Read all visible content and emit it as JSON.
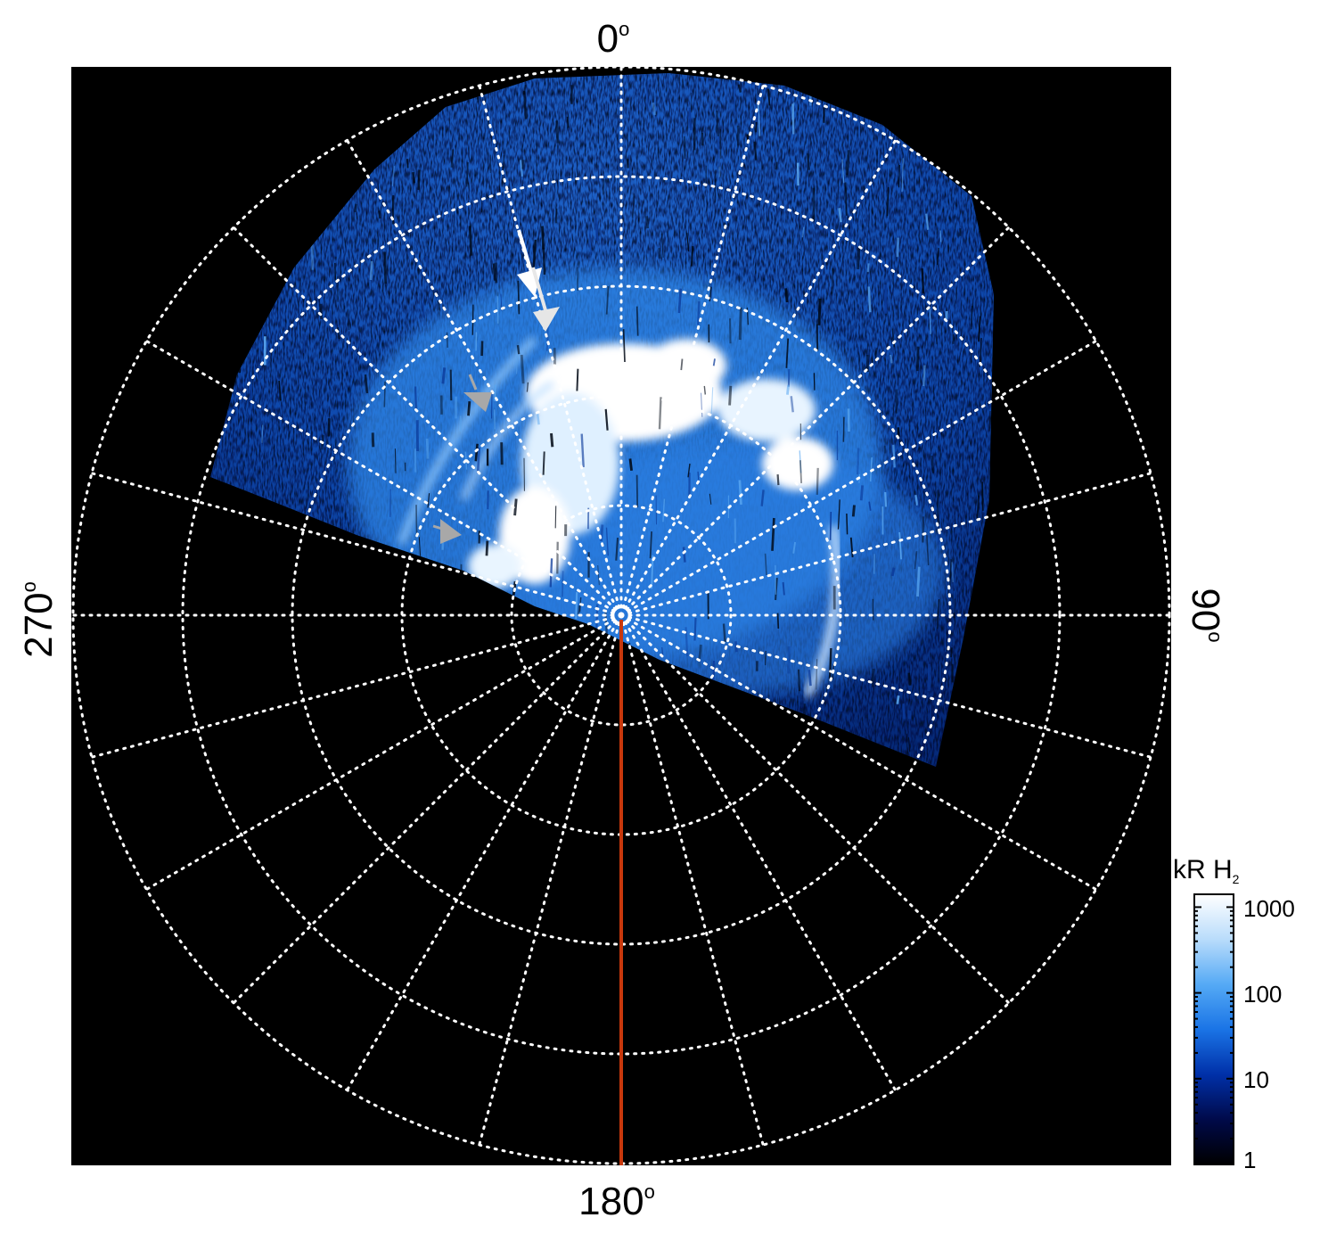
{
  "figure": {
    "labels": {
      "top": "0",
      "bottom": "180",
      "left": "270",
      "right": "90",
      "degree_symbol": "o"
    },
    "colorbar": {
      "title_main": "kR H",
      "title_sub": "2",
      "ticks": [
        "1000",
        "100",
        "10",
        "1"
      ],
      "colors": [
        "#000000",
        "#000a4a",
        "#0030a8",
        "#1a74e6",
        "#55aaf5",
        "#b9dcfb",
        "#ffffff"
      ]
    },
    "colors": {
      "background": "#000000",
      "grid": "#ffffff",
      "meridian_line": "#c8380c",
      "arrow_white": "#ffffff",
      "arrow_grey": "#a8a8a8",
      "aurora_bright": "#ffffff",
      "aurora_mid": "#3b8fe8",
      "aurora_dim": "#0a3c9c"
    }
  }
}
